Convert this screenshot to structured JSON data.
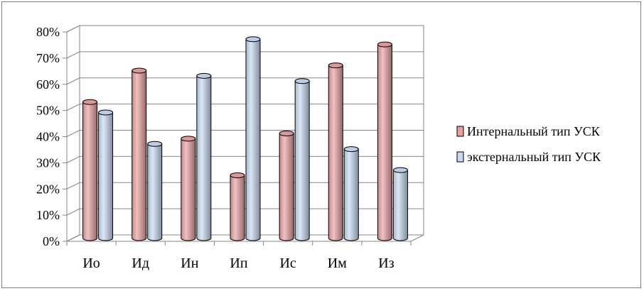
{
  "chart_data": {
    "type": "bar",
    "categories": [
      "Ио",
      "Ид",
      "Ин",
      "Ип",
      "Ис",
      "Им",
      "Из"
    ],
    "series": [
      {
        "name": "Интернальный тип УСК",
        "values": [
          52,
          64,
          38,
          24,
          40,
          66,
          74
        ],
        "color": "#e6a0a0"
      },
      {
        "name": "экстернальный тип УСК",
        "values": [
          48,
          36,
          62,
          76,
          60,
          34,
          26
        ],
        "color": "#c6d9f1"
      }
    ],
    "y_ticks": [
      "0%",
      "10%",
      "20%",
      "30%",
      "40%",
      "50%",
      "60%",
      "70%",
      "80%"
    ],
    "ylim": [
      0,
      80
    ],
    "grid": true,
    "style": "3d-cylinder",
    "legend_position": "right"
  }
}
